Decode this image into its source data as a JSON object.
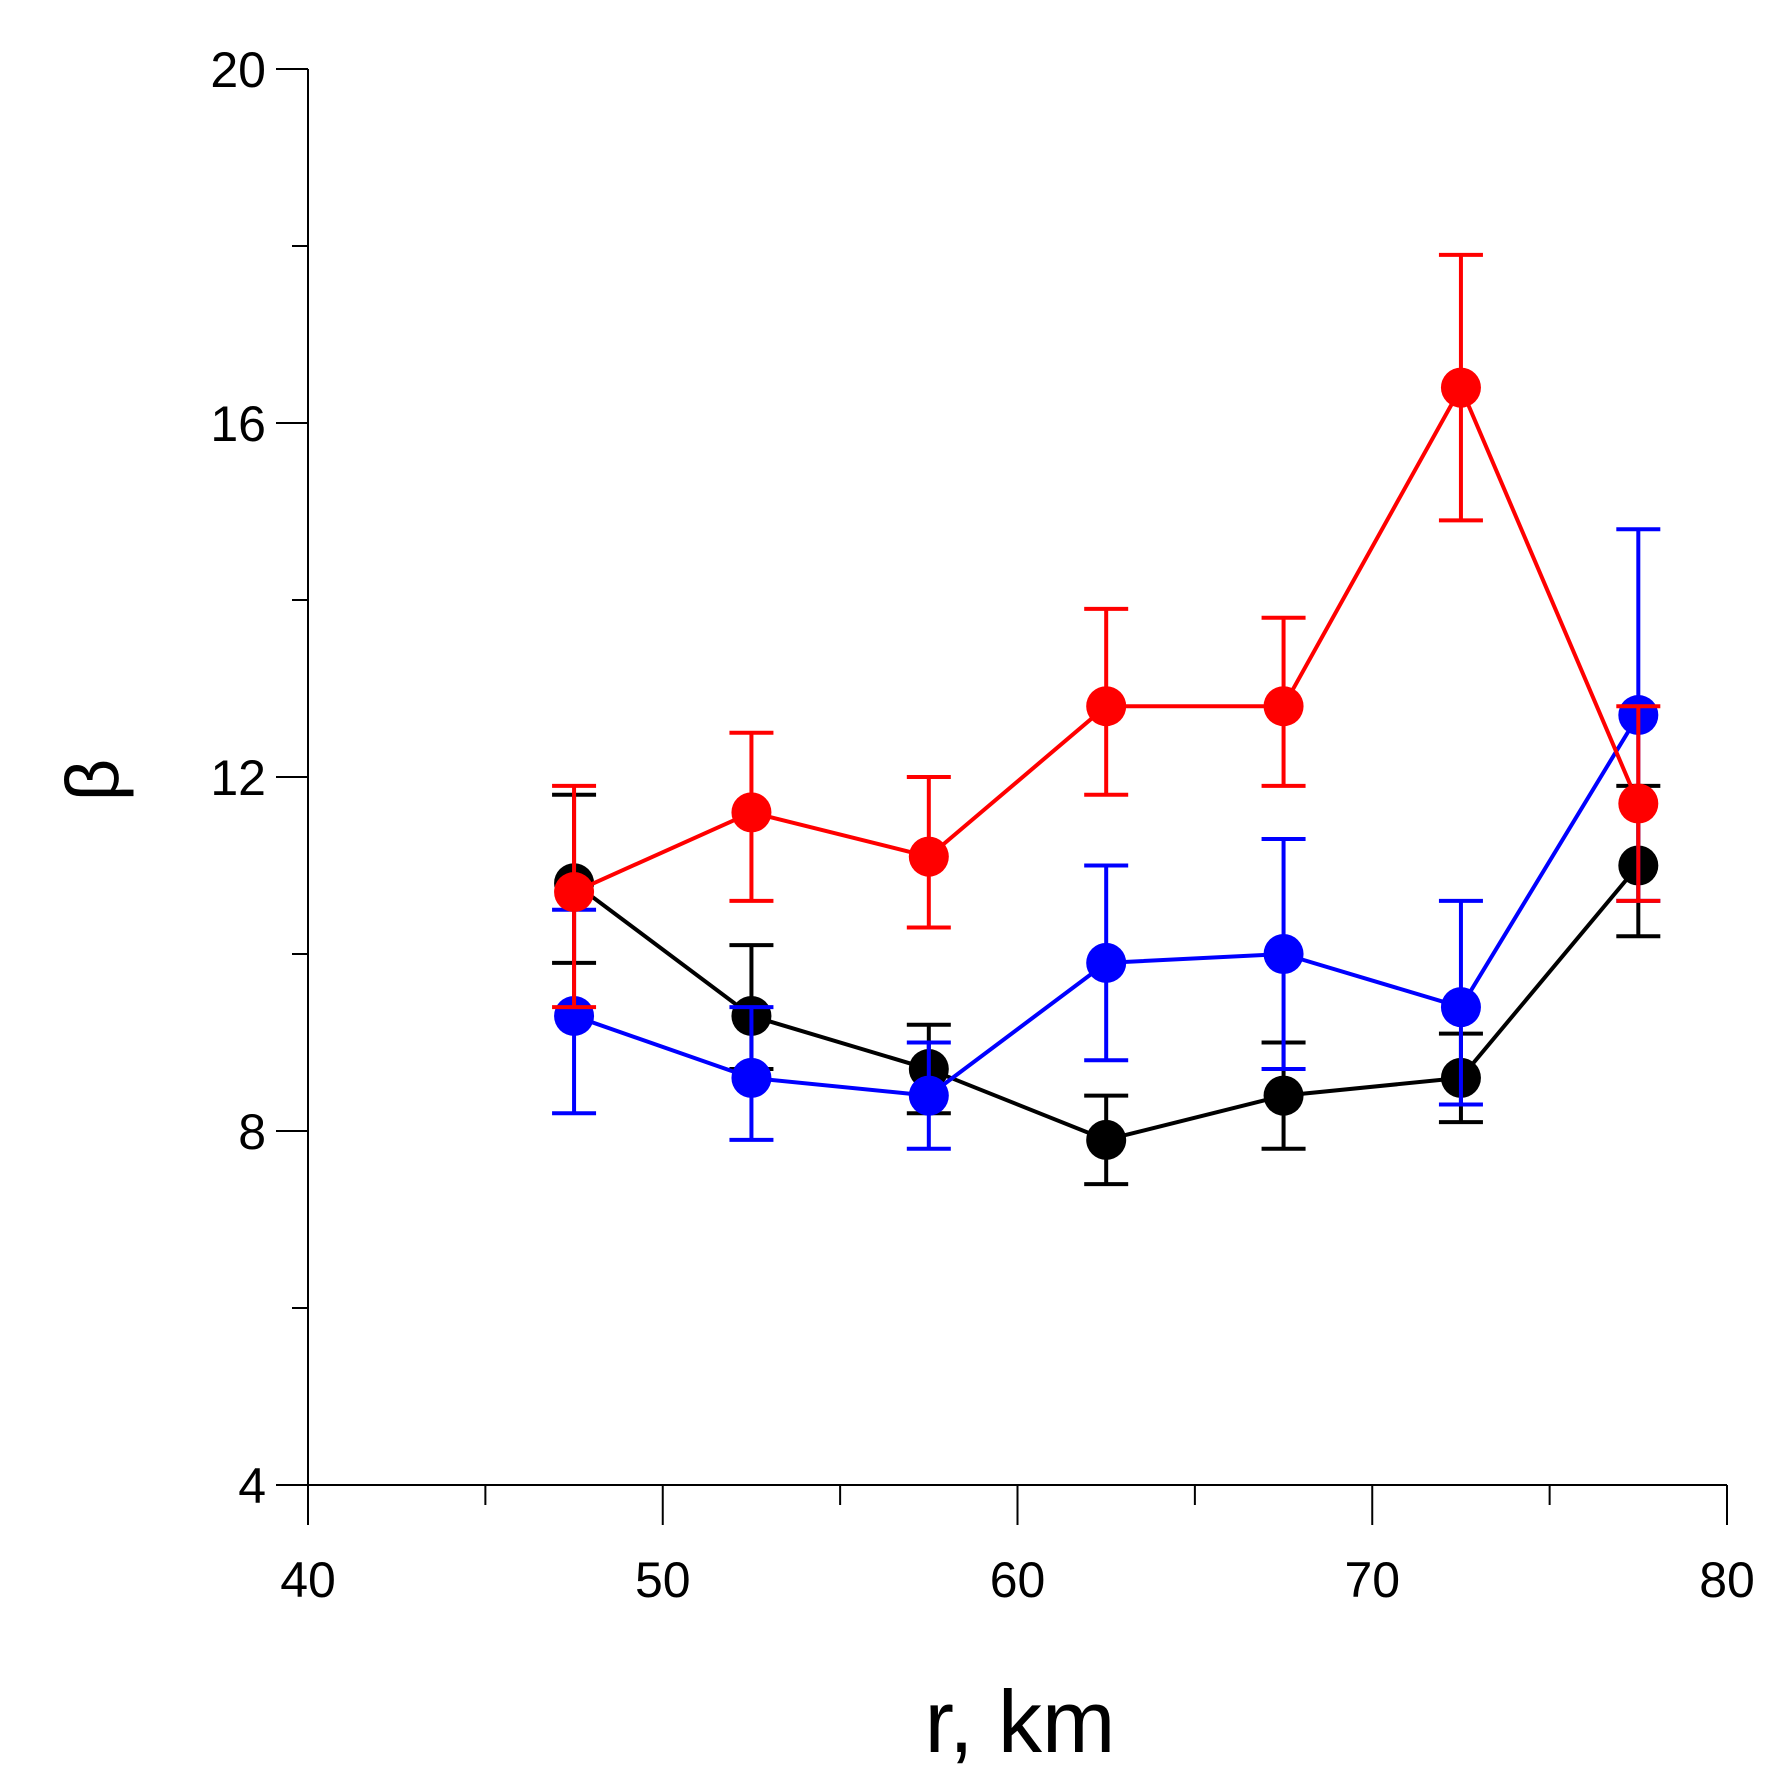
{
  "chart_data": {
    "type": "line",
    "title": "",
    "xlabel": "r, km",
    "ylabel": "β",
    "xlim": [
      40,
      80
    ],
    "ylim": [
      4,
      20
    ],
    "x_major_ticks": [
      40,
      50,
      60,
      70,
      80
    ],
    "x_minor_ticks": [
      45,
      55,
      65,
      75
    ],
    "y_major_ticks": [
      4,
      8,
      12,
      16,
      20
    ],
    "y_minor_ticks": [
      6,
      10,
      14,
      18
    ],
    "x_tick_labels": [
      "40",
      "50",
      "60",
      "70",
      "80"
    ],
    "y_tick_labels": [
      "4",
      "8",
      "12",
      "16",
      "20"
    ],
    "grid": false,
    "legend": "none",
    "x": [
      47.5,
      52.5,
      57.5,
      62.5,
      67.5,
      72.5,
      77.5
    ],
    "series": [
      {
        "name": "black",
        "color": "#000000",
        "values": [
          10.8,
          9.3,
          8.7,
          7.9,
          8.4,
          8.6,
          11.0
        ],
        "err_low": [
          9.9,
          8.7,
          8.2,
          7.4,
          7.8,
          8.1,
          10.2
        ],
        "err_high": [
          11.8,
          10.1,
          9.2,
          8.4,
          9.0,
          9.1,
          11.9
        ]
      },
      {
        "name": "blue",
        "color": "#0000ff",
        "values": [
          9.3,
          8.6,
          8.4,
          9.9,
          10.0,
          9.4,
          12.7
        ],
        "err_low": [
          8.2,
          7.9,
          7.8,
          8.8,
          8.7,
          8.3,
          10.6
        ],
        "err_high": [
          10.5,
          9.4,
          9.0,
          11.0,
          11.3,
          10.6,
          14.8
        ]
      },
      {
        "name": "red",
        "color": "#ff0000",
        "values": [
          10.7,
          11.6,
          11.1,
          12.8,
          12.8,
          16.4,
          11.7
        ],
        "err_low": [
          9.4,
          10.6,
          10.3,
          11.8,
          11.9,
          14.9,
          10.6
        ],
        "err_high": [
          11.9,
          12.5,
          12.0,
          13.9,
          13.8,
          17.9,
          12.8
        ]
      }
    ]
  }
}
